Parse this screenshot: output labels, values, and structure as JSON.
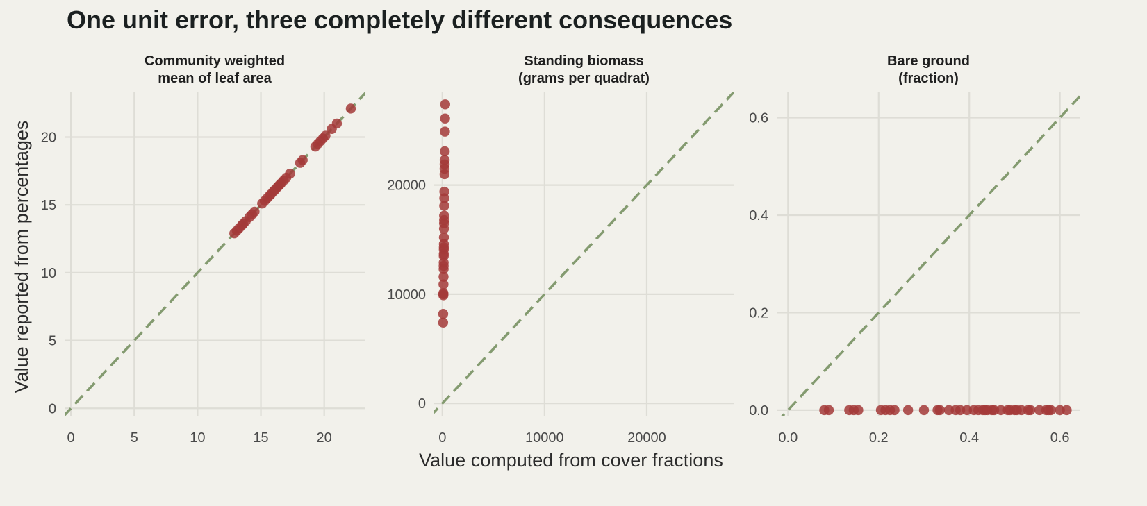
{
  "title": "One unit error, three completely different consequences",
  "xlabel": "Value computed from cover fractions",
  "ylabel": "Value reported from percentages",
  "colors": {
    "background": "#F2F1EB",
    "grid": "#DEDDD6",
    "points": "#A33A38",
    "identity_line": "#849B70"
  },
  "chart_data": [
    {
      "type": "scatter",
      "panel_title": [
        "Community weighted",
        "mean of leaf area"
      ],
      "xlim": [
        -0.5,
        23.2
      ],
      "ylim": [
        -0.6,
        23.3
      ],
      "x_ticks": [
        0,
        5,
        10,
        15,
        20
      ],
      "x_tick_labels": [
        "0",
        "5",
        "10",
        "15",
        "20"
      ],
      "y_ticks": [
        0,
        5,
        10,
        15,
        20
      ],
      "y_tick_labels": [
        "0",
        "5",
        "10",
        "15",
        "20"
      ],
      "identity_line": true,
      "x": [
        12.9,
        13.1,
        13.3,
        13.5,
        13.6,
        13.8,
        14.1,
        14.3,
        14.5,
        15.1,
        15.3,
        15.5,
        15.7,
        15.8,
        16.0,
        16.1,
        16.3,
        16.4,
        16.5,
        16.6,
        16.8,
        17.0,
        17.3,
        18.1,
        18.3,
        19.3,
        19.5,
        19.7,
        19.9,
        20.1,
        20.6,
        21.0,
        22.1
      ],
      "y": [
        12.9,
        13.1,
        13.3,
        13.5,
        13.6,
        13.8,
        14.1,
        14.3,
        14.5,
        15.1,
        15.3,
        15.5,
        15.7,
        15.8,
        16.0,
        16.1,
        16.3,
        16.4,
        16.5,
        16.6,
        16.8,
        17.0,
        17.3,
        18.1,
        18.3,
        19.3,
        19.5,
        19.7,
        19.9,
        20.1,
        20.6,
        21.0,
        22.1
      ]
    },
    {
      "type": "scatter",
      "panel_title": [
        "Standing biomass",
        "(grams per quadrat)"
      ],
      "xlim": [
        -800,
        28500
      ],
      "ylim": [
        -1200,
        28500
      ],
      "x_ticks": [
        0,
        10000,
        20000
      ],
      "x_tick_labels": [
        "0",
        "10000",
        "20000"
      ],
      "y_ticks": [
        0,
        10000,
        20000
      ],
      "y_tick_labels": [
        "0",
        "10000",
        "20000"
      ],
      "identity_line": true,
      "x": [
        274,
        261,
        249,
        231,
        223,
        219,
        215,
        210,
        194,
        188,
        181,
        172,
        168,
        165,
        160,
        152,
        146,
        143,
        141,
        137,
        135,
        129,
        126,
        123,
        116,
        109,
        101,
        100,
        99,
        82,
        74
      ],
      "y": [
        27400,
        26100,
        24900,
        23100,
        22300,
        21900,
        21500,
        21000,
        19400,
        18800,
        18100,
        17200,
        16800,
        16500,
        16000,
        15200,
        14600,
        14300,
        14100,
        13700,
        13500,
        12900,
        12600,
        12300,
        11600,
        10900,
        10100,
        10000,
        9900,
        8200,
        7400
      ]
    },
    {
      "type": "scatter",
      "panel_title": [
        "Bare ground",
        "(fraction)"
      ],
      "xlim": [
        -0.025,
        0.645
      ],
      "ylim": [
        -0.013,
        0.652
      ],
      "x_ticks": [
        0.0,
        0.2,
        0.4,
        0.6
      ],
      "x_tick_labels": [
        "0.0",
        "0.2",
        "0.4",
        "0.6"
      ],
      "y_ticks": [
        0.0,
        0.2,
        0.4,
        0.6
      ],
      "y_tick_labels": [
        "0.0",
        "0.2",
        "0.4",
        "0.6"
      ],
      "identity_line": true,
      "x": [
        0.08,
        0.09,
        0.135,
        0.145,
        0.155,
        0.205,
        0.215,
        0.225,
        0.235,
        0.265,
        0.3,
        0.33,
        0.335,
        0.355,
        0.37,
        0.38,
        0.395,
        0.41,
        0.42,
        0.43,
        0.435,
        0.44,
        0.45,
        0.455,
        0.47,
        0.485,
        0.49,
        0.5,
        0.505,
        0.515,
        0.53,
        0.535,
        0.555,
        0.57,
        0.575,
        0.58,
        0.6,
        0.615
      ],
      "y": [
        0,
        0,
        0,
        0,
        0,
        0,
        0,
        0,
        0,
        0,
        0,
        0,
        0,
        0,
        0,
        0,
        0,
        0,
        0,
        0,
        0,
        0,
        0,
        0,
        0,
        0,
        0,
        0,
        0,
        0,
        0,
        0,
        0,
        0,
        0,
        0,
        0,
        0
      ]
    }
  ]
}
